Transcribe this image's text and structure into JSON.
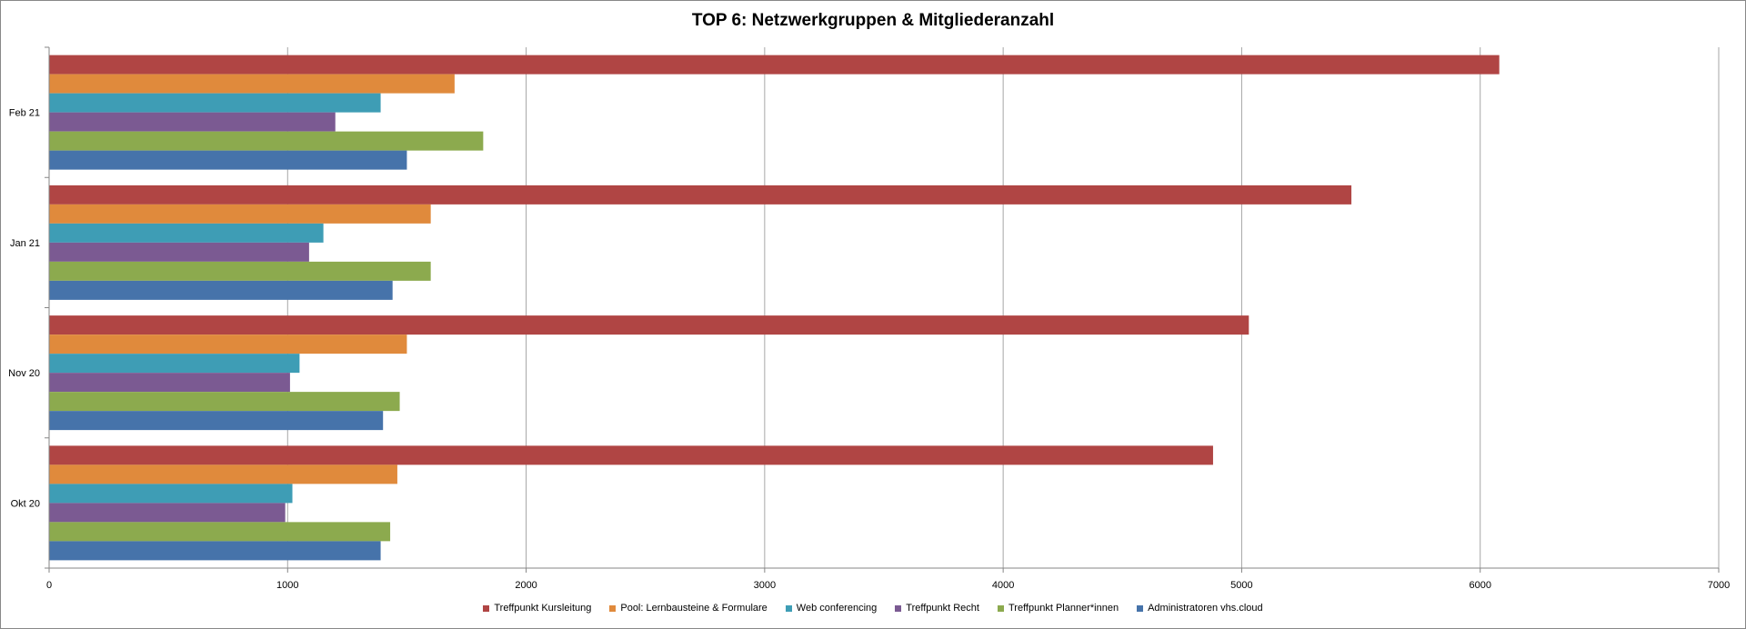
{
  "chart_data": {
    "type": "bar",
    "orientation": "horizontal",
    "title": "TOP 6: Netzwerkgruppen & Mitgliederanzahl",
    "categories": [
      "Okt 20",
      "Nov 20",
      "Jan 21",
      "Feb 21"
    ],
    "xlim": [
      0,
      7000
    ],
    "xticks": [
      0,
      1000,
      2000,
      3000,
      4000,
      5000,
      6000,
      7000
    ],
    "grid": "vertical",
    "legend_position": "bottom",
    "series": [
      {
        "name": "Treffpunkt Kursleitung",
        "color": "#B04544",
        "values": [
          4880,
          5030,
          5460,
          6080
        ]
      },
      {
        "name": "Pool: Lernbausteine & Formulare",
        "color": "#E08A3C",
        "values": [
          1460,
          1500,
          1600,
          1700
        ]
      },
      {
        "name": "Web conferencing",
        "color": "#3E9DB5",
        "values": [
          1020,
          1050,
          1150,
          1390
        ]
      },
      {
        "name": "Treffpunkt Recht",
        "color": "#7B5A92",
        "values": [
          990,
          1010,
          1090,
          1200
        ]
      },
      {
        "name": "Treffpunkt Planner*innen",
        "color": "#8CAA4E",
        "values": [
          1430,
          1470,
          1600,
          1820
        ]
      },
      {
        "name": "Administratoren vhs.cloud",
        "color": "#4673AA",
        "values": [
          1390,
          1400,
          1440,
          1500
        ]
      }
    ]
  }
}
